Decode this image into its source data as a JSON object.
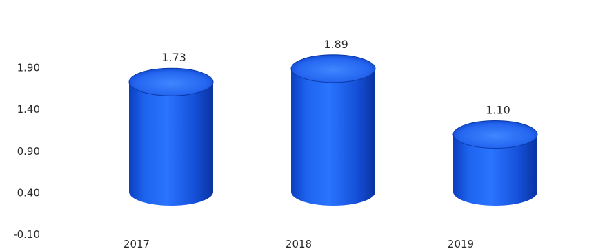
{
  "chart_data": {
    "type": "bar",
    "style": "3d-cylinder",
    "categories": [
      "2017",
      "2018",
      "2019"
    ],
    "values": [
      1.73,
      1.89,
      1.1
    ],
    "value_labels": [
      "1.73",
      "1.89",
      "1.10"
    ],
    "title": "",
    "xlabel": "",
    "ylabel": "",
    "y_ticks": [
      "-0.10",
      "0.40",
      "0.90",
      "1.40",
      "1.90"
    ],
    "ylim": [
      -0.1,
      2.4
    ],
    "grid": false,
    "legend": "none",
    "colors": {
      "bar": "#1a5ee6",
      "bar_dark": "#0a35a8",
      "bar_top": "#3f86ff",
      "text": "#2b2b2b"
    }
  }
}
